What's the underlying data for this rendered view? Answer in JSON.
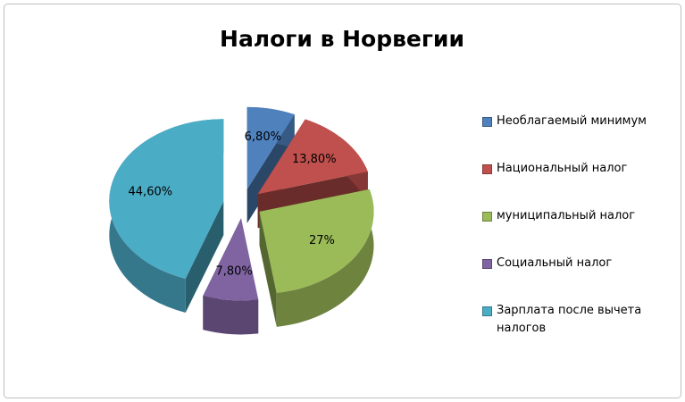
{
  "chart_data": {
    "type": "pie",
    "title": "Налоги в Норвегии",
    "categories": [
      "Необлагаемый минимум",
      "Национальный налог",
      "муниципальный налог",
      "Социальный налог",
      "Зарплата после вычета налогов"
    ],
    "values": [
      6.8,
      13.8,
      27,
      7.8,
      44.6
    ],
    "value_labels": [
      "6,80%",
      "13,80%",
      "27%",
      "7,80%",
      "44,60%"
    ],
    "colors": [
      "#4f81bd",
      "#c0504d",
      "#9bbb59",
      "#8064a2",
      "#4bacc6"
    ],
    "legend": "right"
  }
}
